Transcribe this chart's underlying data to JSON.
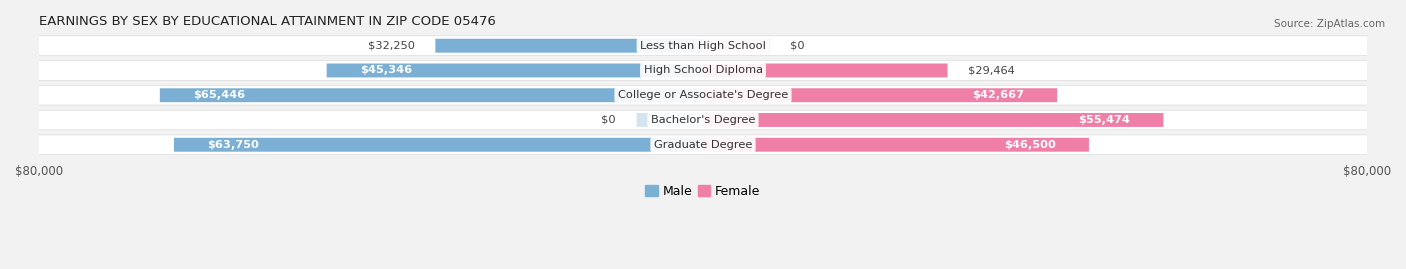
{
  "title": "EARNINGS BY SEX BY EDUCATIONAL ATTAINMENT IN ZIP CODE 05476",
  "source": "Source: ZipAtlas.com",
  "categories": [
    "Less than High School",
    "High School Diploma",
    "College or Associate's Degree",
    "Bachelor's Degree",
    "Graduate Degree"
  ],
  "male_values": [
    32250,
    45346,
    65446,
    0,
    63750
  ],
  "female_values": [
    0,
    29464,
    42667,
    55474,
    46500
  ],
  "male_labels": [
    "$32,250",
    "$45,346",
    "$65,446",
    "$0",
    "$63,750"
  ],
  "female_labels": [
    "$0",
    "$29,464",
    "$42,667",
    "$55,474",
    "$46,500"
  ],
  "male_color": "#7bafd4",
  "female_color": "#f07fa8",
  "male_color_light": "#c5d9ea",
  "female_color_light": "#f5b8cf",
  "max_value": 80000,
  "axis_label": "$80,000",
  "background_color": "#f2f2f2",
  "row_bg_color": "#ffffff",
  "row_stripe_color": "#e8eaec",
  "title_fontsize": 9.5,
  "label_fontsize": 8.5,
  "tick_fontsize": 8.5
}
